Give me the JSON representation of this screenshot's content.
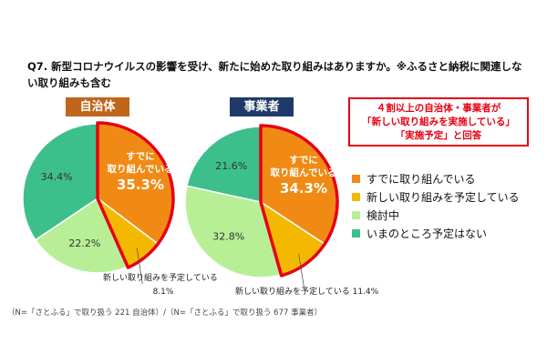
{
  "question": {
    "line1": "Q7. 新型コロナウイルスの影響を受け、新たに始めた取り組みはありますか。※ふるさと納税に関連しな",
    "line2": "い取り組みも含む"
  },
  "callout": {
    "line1": "４割以上の自治体・事業者が",
    "line2": "「新しい取り組みを実施している」",
    "line3": "「実施予定」と回答"
  },
  "footnote": "（N=「さとふる」で取り扱う 221 自治体）/（N=「さとふる」で取り扱う 677 事業者）",
  "colors": {
    "orange": "#f08a14",
    "yellow": "#f5b800",
    "lightgreen": "#b8ef96",
    "teal": "#3dbf8c",
    "highlight": "#e60012"
  },
  "chart_data": {
    "type": "pie",
    "categories": [
      "すでに取り組んでいる",
      "新しい取り組みを予定している",
      "検討中",
      "いまのところ予定はない"
    ],
    "series": [
      {
        "name": "自治体",
        "values": [
          35.3,
          8.1,
          22.2,
          34.4
        ],
        "labels": [
          "35.3%",
          "8.1%",
          "22.2%",
          "34.4%"
        ]
      },
      {
        "name": "事業者",
        "values": [
          34.3,
          11.4,
          32.8,
          21.6
        ],
        "labels": [
          "34.3%",
          "11.4%",
          "32.8%",
          "21.6%"
        ]
      }
    ],
    "legend": {
      "position": "right",
      "entries": [
        "すでに取り組んでいる",
        "新しい取り組みを予定している",
        "検討中",
        "いまのところ予定はない"
      ]
    },
    "annotations": {
      "slice_label": "すでに\n取り組んでいる",
      "local_new_label": "新しい取り組みを予定している",
      "biz_new_label": "新しい取り組みを予定している 11.4%"
    }
  }
}
